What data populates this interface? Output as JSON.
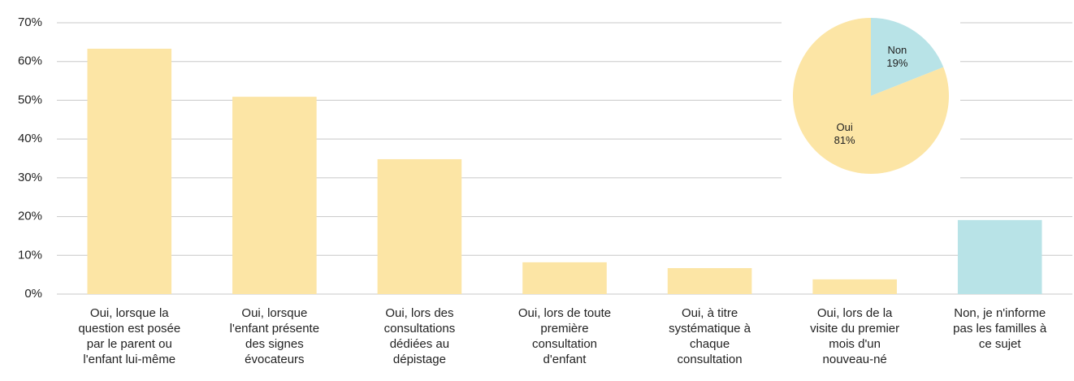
{
  "chart_data": [
    {
      "type": "bar",
      "categories": [
        [
          "Oui, lorsque la",
          "question est posée",
          "par le parent ou",
          "l'enfant lui-même"
        ],
        [
          "Oui, lorsque",
          "l'enfant présente",
          "des signes",
          "évocateurs"
        ],
        [
          "Oui, lors des",
          "consultations",
          "dédiées au",
          "dépistage"
        ],
        [
          "Oui, lors de toute",
          "première",
          "consultation",
          "d'enfant"
        ],
        [
          "Oui, à titre",
          "systématique à",
          "chaque",
          "consultation"
        ],
        [
          "Oui, lors de la",
          "visite du premier",
          "mois d'un",
          "nouveau-né"
        ],
        [
          "Non, je n'informe",
          "pas les familles à",
          "ce sujet"
        ]
      ],
      "values": [
        63.3,
        50.9,
        34.8,
        8.2,
        6.7,
        3.8,
        19.1
      ],
      "colors": [
        "#fce5a5",
        "#fce5a5",
        "#fce5a5",
        "#fce5a5",
        "#fce5a5",
        "#fce5a5",
        "#b8e3e7"
      ],
      "ylim": [
        0,
        70
      ],
      "yticks": [
        {
          "value": 0,
          "label": "0%"
        },
        {
          "value": 10,
          "label": "10%"
        },
        {
          "value": 20,
          "label": "20%"
        },
        {
          "value": 30,
          "label": "30%"
        },
        {
          "value": 40,
          "label": "40%"
        },
        {
          "value": 50,
          "label": "50%"
        },
        {
          "value": 60,
          "label": "60%"
        },
        {
          "value": 70,
          "label": "70%"
        }
      ],
      "grid": true
    },
    {
      "type": "pie",
      "categories": [
        "Non",
        "Oui"
      ],
      "values": [
        19,
        81
      ],
      "value_labels": [
        "19%",
        "81%"
      ],
      "colors": [
        "#b8e3e7",
        "#fce5a5"
      ]
    }
  ]
}
